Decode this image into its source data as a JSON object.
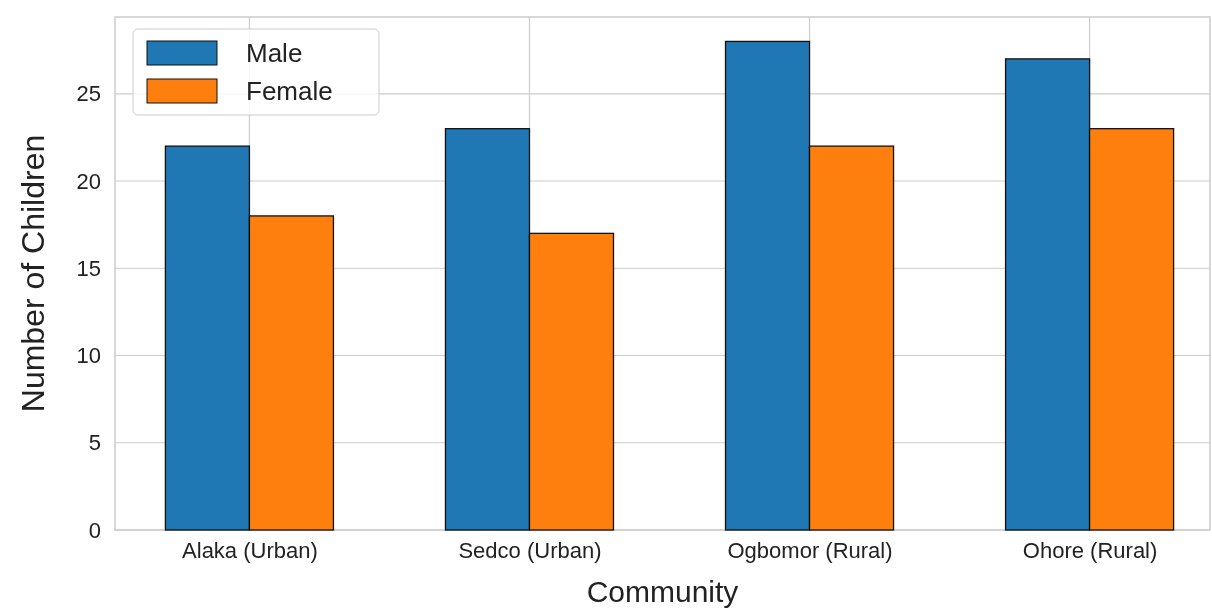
{
  "chart_data": {
    "type": "bar",
    "xlabel": "Community",
    "ylabel": "Number of Children",
    "categories": [
      "Alaka (Urban)",
      "Sedco (Urban)",
      "Ogbomor (Rural)",
      "Ohore (Rural)"
    ],
    "series": [
      {
        "name": "Male",
        "color": "#1f77b4",
        "values": [
          22,
          23,
          28,
          27
        ]
      },
      {
        "name": "Female",
        "color": "#ff7f0e",
        "values": [
          18,
          17,
          22,
          23
        ]
      }
    ],
    "ylim": [
      0,
      29.4
    ],
    "yticks": [
      0,
      5,
      10,
      15,
      20,
      25
    ],
    "grid": true,
    "legend": "top left"
  }
}
